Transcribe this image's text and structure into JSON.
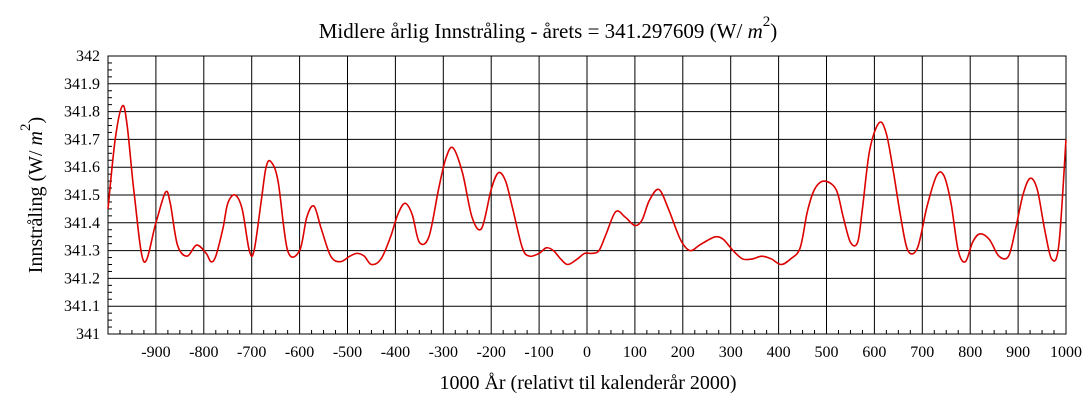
{
  "chart_data": {
    "type": "line",
    "title": {
      "prefix": "Midlere årlig Innstråling - årets = 341.297609 (W/ ",
      "italic_part": "m",
      "superscript": "2",
      "suffix": ")"
    },
    "xlabel": "1000 År (relativt til kalenderår 2000)",
    "ylabel": {
      "prefix": "Innstråling  (W/ ",
      "italic_part": "m",
      "superscript": "2",
      "suffix": ")"
    },
    "xlim": [
      -1000,
      1000
    ],
    "ylim": [
      341,
      342
    ],
    "grid": true,
    "x_ticks": [
      -900,
      -800,
      -700,
      -600,
      -500,
      -400,
      -300,
      -200,
      -100,
      0,
      100,
      200,
      300,
      400,
      500,
      600,
      700,
      800,
      900,
      1000
    ],
    "x_tick_labels": [
      "-900",
      "-800",
      "-700",
      "-600",
      "-500",
      "-400",
      "-300",
      "-200",
      "-100",
      "0",
      "100",
      "200",
      "300",
      "400",
      "500",
      "600",
      "700",
      "800",
      "900",
      "1000"
    ],
    "y_ticks": [
      341,
      341.1,
      341.2,
      341.3,
      341.4,
      341.5,
      341.6,
      341.7,
      341.8,
      341.9,
      342
    ],
    "y_tick_labels": [
      "341",
      "341.1",
      "341.2",
      "341.3",
      "341.4",
      "341.5",
      "341.6",
      "341.7",
      "341.8",
      "341.9",
      "342"
    ],
    "line_color": "#dd0000",
    "series": [
      {
        "x": [
          -1000,
          -985,
          -970,
          -960,
          -945,
          -925,
          -900,
          -880,
          -870,
          -855,
          -835,
          -815,
          -795,
          -785,
          -775,
          -760,
          -750,
          -735,
          -720,
          -705,
          -695,
          -680,
          -670,
          -660,
          -645,
          -625,
          -600,
          -585,
          -570,
          -555,
          -535,
          -515,
          -495,
          -480,
          -465,
          -450,
          -430,
          -410,
          -395,
          -380,
          -365,
          -350,
          -330,
          -310,
          -295,
          -280,
          -260,
          -240,
          -220,
          -200,
          -185,
          -170,
          -155,
          -135,
          -120,
          -100,
          -85,
          -70,
          -55,
          -40,
          -20,
          -5,
          10,
          25,
          40,
          60,
          80,
          100,
          115,
          130,
          150,
          170,
          195,
          215,
          235,
          255,
          270,
          285,
          305,
          325,
          345,
          365,
          385,
          405,
          425,
          445,
          460,
          475,
          495,
          520,
          535,
          550,
          565,
          575,
          590,
          610,
          625,
          640,
          655,
          670,
          690,
          710,
          730,
          745,
          760,
          775,
          790,
          805,
          820,
          840,
          860,
          880,
          895,
          910,
          925,
          940,
          955,
          970,
          985,
          1000
        ],
        "y": [
          341.45,
          341.7,
          341.82,
          341.75,
          341.5,
          341.26,
          341.4,
          341.51,
          341.47,
          341.32,
          341.28,
          341.32,
          341.29,
          341.26,
          341.28,
          341.38,
          341.47,
          341.5,
          341.45,
          341.3,
          341.3,
          341.48,
          341.6,
          341.62,
          341.55,
          341.3,
          341.3,
          341.42,
          341.46,
          341.38,
          341.28,
          341.26,
          341.28,
          341.29,
          341.28,
          341.25,
          341.27,
          341.35,
          341.43,
          341.47,
          341.43,
          341.33,
          341.35,
          341.52,
          341.63,
          341.67,
          341.58,
          341.42,
          341.38,
          341.52,
          341.58,
          341.55,
          341.45,
          341.31,
          341.28,
          341.29,
          341.31,
          341.3,
          341.27,
          341.25,
          341.27,
          341.29,
          341.29,
          341.3,
          341.36,
          341.44,
          341.42,
          341.39,
          341.41,
          341.48,
          341.52,
          341.45,
          341.34,
          341.3,
          341.32,
          341.34,
          341.35,
          341.34,
          341.3,
          341.27,
          341.27,
          341.28,
          341.27,
          341.25,
          341.27,
          341.31,
          341.44,
          341.52,
          341.55,
          341.52,
          341.42,
          341.33,
          341.33,
          341.45,
          341.66,
          341.76,
          341.72,
          341.58,
          341.42,
          341.3,
          341.31,
          341.46,
          341.57,
          341.57,
          341.47,
          341.3,
          341.26,
          341.33,
          341.36,
          341.34,
          341.28,
          341.28,
          341.38,
          341.5,
          341.56,
          341.52,
          341.38,
          341.27,
          341.32,
          341.7
        ]
      }
    ]
  }
}
